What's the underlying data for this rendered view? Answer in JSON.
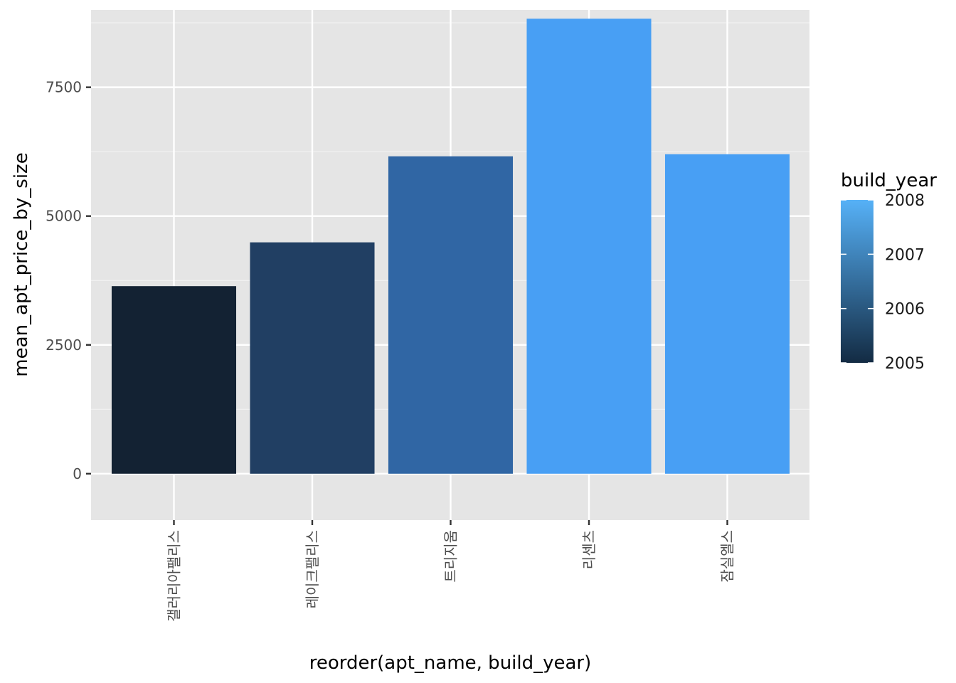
{
  "chart_data": {
    "type": "bar",
    "categories": [
      "갤러리아팰리스",
      "레이크팰리스",
      "트리지움",
      "리센츠",
      "잠실엘스"
    ],
    "values": [
      3640,
      4490,
      6160,
      8830,
      6200
    ],
    "build_year": [
      2005,
      2006,
      2007,
      2008,
      2008
    ],
    "title": "",
    "xlabel": "reorder(apt_name, build_year)",
    "ylabel": "mean_apt_price_by_size",
    "ylim": [
      -900,
      9000
    ],
    "y_ticks": [
      0,
      2500,
      5000,
      7500
    ],
    "y_tick_labels": [
      "0",
      "2500",
      "5000",
      "7500"
    ],
    "grid": true,
    "legend": {
      "title": "build_year",
      "placement": "right",
      "range": [
        2005,
        2008
      ],
      "ticks": [
        2005,
        2006,
        2007,
        2008
      ],
      "tick_labels": [
        "2005",
        "2006",
        "2007",
        "2008"
      ],
      "color_low": "#132B43",
      "color_high": "#56B1F7"
    },
    "colors": {
      "panel_background": "#e5e5e5",
      "grid": "#ffffff",
      "bar_fills": [
        "#132233",
        "#213F63",
        "#3066A4",
        "#489FF4",
        "#489FF4"
      ]
    }
  }
}
